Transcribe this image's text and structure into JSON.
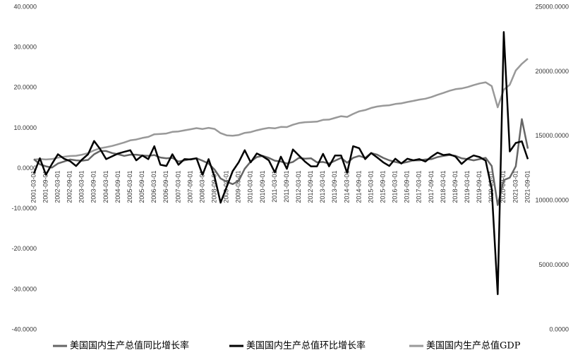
{
  "chart_data": {
    "type": "line",
    "categories": [
      "2001-03-01",
      null,
      "2001-09-01",
      null,
      "2002-03-01",
      null,
      "2002-09-01",
      null,
      "2003-03-01",
      null,
      "2003-09-01",
      null,
      "2004-03-01",
      null,
      "2004-09-01",
      null,
      "2005-03-01",
      null,
      "2005-09-01",
      null,
      "2006-03-01",
      null,
      "2006-09-01",
      null,
      "2007-03-01",
      null,
      "2007-09-01",
      null,
      "2008-03-01",
      null,
      "2008-09-01",
      null,
      "2009-03-01",
      null,
      "2009-09-01",
      null,
      "2010-03-01",
      null,
      "2010-09-01",
      null,
      "2011-03-01",
      null,
      "2011-09-01",
      null,
      "2012-03-01",
      null,
      "2012-09-01",
      null,
      "2013-03-01",
      null,
      "2013-09-01",
      null,
      "2014-03-01",
      null,
      "2014-09-01",
      null,
      "2015-03-01",
      null,
      "2015-09-01",
      null,
      "2016-03-01",
      null,
      "2016-09-01",
      null,
      "2017-03-01",
      null,
      "2017-09-01",
      null,
      "2018-03-01",
      null,
      "2018-09-01",
      null,
      "2019-03-01",
      null,
      "2019-09-01",
      null,
      "2020-03-01",
      null,
      "2020-09-01",
      null,
      "2021-03-01",
      null,
      "2021-09-01"
    ],
    "series": [
      {
        "name": "美国国内生产总值同比增长率",
        "color": "#666666",
        "values": [
          2.3,
          1.0,
          0.5,
          0.2,
          1.2,
          1.7,
          2.2,
          2.0,
          1.9,
          2.1,
          3.5,
          4.3,
          4.3,
          3.8,
          3.5,
          3.1,
          3.4,
          3.4,
          3.2,
          3.1,
          3.3,
          2.7,
          2.5,
          2.6,
          1.7,
          2.0,
          2.3,
          2.5,
          1.9,
          1.2,
          -0.3,
          -2.5,
          -3.3,
          -3.9,
          -3.1,
          -0.1,
          1.7,
          2.8,
          3.1,
          2.6,
          1.9,
          1.7,
          1.2,
          1.6,
          2.6,
          2.4,
          2.5,
          1.5,
          1.6,
          1.2,
          1.9,
          2.6,
          1.4,
          2.6,
          3.1,
          2.6,
          3.8,
          3.4,
          2.6,
          2.0,
          1.6,
          1.3,
          1.6,
          2.0,
          2.0,
          2.2,
          2.3,
          2.8,
          3.1,
          3.3,
          3.1,
          2.5,
          2.3,
          2.0,
          2.3,
          2.6,
          0.6,
          -9.1,
          -2.9,
          -2.3,
          0.5,
          12.2,
          4.9
        ]
      },
      {
        "name": "美国国内生产总值环比增长率",
        "color": "#000000",
        "values": [
          -1.3,
          2.5,
          -1.6,
          1.1,
          3.5,
          2.4,
          1.8,
          0.6,
          2.2,
          3.5,
          6.8,
          4.8,
          2.3,
          3.0,
          3.7,
          4.1,
          4.5,
          2.0,
          3.2,
          2.3,
          5.5,
          0.9,
          0.6,
          3.5,
          0.9,
          2.3,
          2.2,
          2.5,
          -1.6,
          2.3,
          -2.1,
          -8.5,
          -4.6,
          -0.7,
          1.5,
          4.5,
          1.5,
          3.7,
          3.0,
          2.0,
          -1.0,
          2.9,
          -0.1,
          4.7,
          3.2,
          1.7,
          0.5,
          0.5,
          3.6,
          0.5,
          3.2,
          3.2,
          -1.1,
          5.5,
          5.0,
          2.3,
          3.8,
          2.7,
          1.5,
          0.6,
          2.4,
          1.2,
          2.4,
          2.0,
          2.3,
          1.7,
          2.9,
          3.9,
          3.3,
          3.5,
          2.9,
          1.1,
          2.4,
          3.2,
          2.8,
          1.9,
          -5.1,
          -31.2,
          33.8,
          4.2,
          6.3,
          6.7,
          2.3
        ]
      },
      {
        "name": "美国国内生产总值GDP",
        "color": "#999999",
        "axis": "y2",
        "values": [
          13180,
          13230,
          13190,
          13220,
          13330,
          13400,
          13460,
          13480,
          13560,
          13680,
          13900,
          14060,
          14140,
          14240,
          14370,
          14510,
          14670,
          14740,
          14860,
          14940,
          15140,
          15170,
          15200,
          15330,
          15360,
          15450,
          15530,
          15620,
          15550,
          15640,
          15560,
          15230,
          15060,
          15030,
          15090,
          15250,
          15310,
          15450,
          15560,
          15640,
          15600,
          15710,
          15700,
          15880,
          16010,
          16080,
          16100,
          16120,
          16260,
          16280,
          16410,
          16540,
          16490,
          16720,
          16920,
          17020,
          17180,
          17290,
          17360,
          17390,
          17490,
          17540,
          17640,
          17730,
          17830,
          17900,
          18030,
          18200,
          18350,
          18510,
          18640,
          18690,
          18800,
          18950,
          19080,
          19170,
          18880,
          17230,
          18600,
          18980,
          20080,
          20600,
          21000
        ]
      }
    ],
    "ylim": [
      -40,
      40
    ],
    "yticks": [
      {
        "value": -40,
        "label": "-40.0000"
      },
      {
        "value": -30,
        "label": "-30.0000"
      },
      {
        "value": -20,
        "label": "-20.0000"
      },
      {
        "value": -10,
        "label": "-10.0000"
      },
      {
        "value": 0,
        "label": "0.0000"
      },
      {
        "value": 10,
        "label": "10.0000"
      },
      {
        "value": 20,
        "label": "20.0000"
      },
      {
        "value": 30,
        "label": "30.0000"
      },
      {
        "value": 40,
        "label": "40.0000"
      }
    ],
    "y2lim": [
      0,
      25000
    ],
    "y2ticks": [
      {
        "value": 0,
        "label": "0.0000"
      },
      {
        "value": 5000,
        "label": "5000.0000"
      },
      {
        "value": 10000,
        "label": "10000.0000"
      },
      {
        "value": 15000,
        "label": "15000.0000"
      },
      {
        "value": 20000,
        "label": "20000.0000"
      },
      {
        "value": 25000,
        "label": "25000.0000"
      }
    ],
    "grid": false,
    "legend": "bottom"
  }
}
